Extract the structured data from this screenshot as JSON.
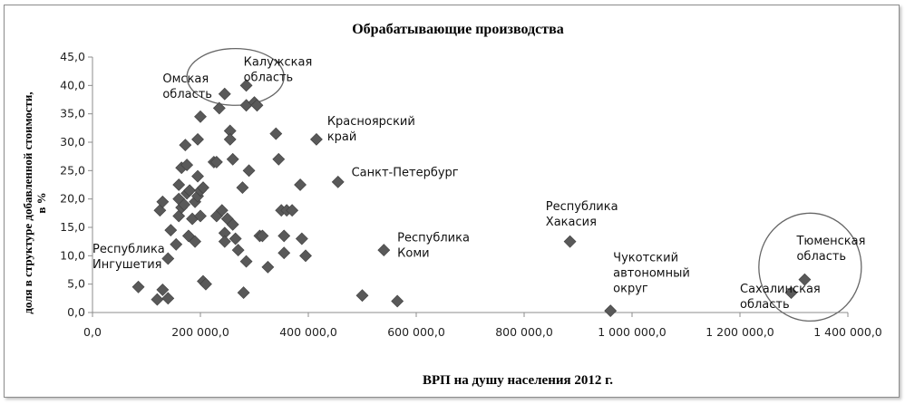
{
  "chart_data": {
    "type": "scatter",
    "title": "Обрабатывающие производства",
    "xlabel": "ВРП на душу населения 2012 г.",
    "ylabel_lines": [
      "доля в структуре добавленной стоимости,",
      "в %"
    ],
    "xlim": [
      0,
      1400000
    ],
    "ylim": [
      0,
      45
    ],
    "x_ticks": [
      0,
      200000,
      400000,
      600000,
      800000,
      1000000,
      1200000,
      1400000
    ],
    "x_tick_labels": [
      "0,0",
      "200 000,0",
      "400 000,0",
      "600 000,0",
      "800 000,0",
      "1 000 000,0",
      "1 200 000,0",
      "1 400 000,0"
    ],
    "y_ticks": [
      0,
      5,
      10,
      15,
      20,
      25,
      30,
      35,
      40,
      45
    ],
    "y_tick_labels": [
      "0,0",
      "5,0",
      "10,0",
      "15,0",
      "20,0",
      "25,0",
      "30,0",
      "35,0",
      "40,0",
      "45,0"
    ],
    "grid": false,
    "marker": "diamond",
    "marker_color": "#595959",
    "points": [
      [
        85000,
        4.5
      ],
      [
        120000,
        2.3
      ],
      [
        130000,
        4.0
      ],
      [
        140000,
        2.5
      ],
      [
        125000,
        18.0
      ],
      [
        130000,
        19.5
      ],
      [
        140000,
        9.5
      ],
      [
        145000,
        14.5
      ],
      [
        155000,
        12.0
      ],
      [
        160000,
        17.0
      ],
      [
        165000,
        18.5
      ],
      [
        160000,
        20.0
      ],
      [
        170000,
        19.0
      ],
      [
        175000,
        21.0
      ],
      [
        178000,
        13.5
      ],
      [
        180000,
        21.5
      ],
      [
        185000,
        16.5
      ],
      [
        190000,
        19.5
      ],
      [
        195000,
        20.5
      ],
      [
        160000,
        22.5
      ],
      [
        165000,
        25.5
      ],
      [
        175000,
        26.0
      ],
      [
        172000,
        29.5
      ],
      [
        195000,
        30.5
      ],
      [
        200000,
        21.5
      ],
      [
        205000,
        22.0
      ],
      [
        195000,
        24.0
      ],
      [
        190000,
        12.5
      ],
      [
        200000,
        17.0
      ],
      [
        200000,
        34.5
      ],
      [
        205000,
        5.5
      ],
      [
        210000,
        5.0
      ],
      [
        225000,
        26.5
      ],
      [
        230000,
        17.0
      ],
      [
        230000,
        26.5
      ],
      [
        240000,
        18.0
      ],
      [
        245000,
        14.0
      ],
      [
        245000,
        12.5
      ],
      [
        250000,
        16.5
      ],
      [
        245000,
        38.5
      ],
      [
        235000,
        36.0
      ],
      [
        255000,
        32.0
      ],
      [
        255000,
        30.5
      ],
      [
        260000,
        27.0
      ],
      [
        260000,
        15.5
      ],
      [
        270000,
        11.0
      ],
      [
        265000,
        13.0
      ],
      [
        278000,
        22.0
      ],
      [
        280000,
        3.5
      ],
      [
        285000,
        9.0
      ],
      [
        285000,
        36.5
      ],
      [
        290000,
        25.0
      ],
      [
        300000,
        37.0
      ],
      [
        285000,
        40.0
      ],
      [
        305000,
        36.5
      ],
      [
        310000,
        13.5
      ],
      [
        315000,
        13.5
      ],
      [
        325000,
        8.0
      ],
      [
        340000,
        31.5
      ],
      [
        345000,
        27.0
      ],
      [
        350000,
        18.0
      ],
      [
        355000,
        13.5
      ],
      [
        355000,
        10.5
      ],
      [
        360000,
        18.0
      ],
      [
        370000,
        18.0
      ],
      [
        385000,
        22.5
      ],
      [
        388000,
        13.0
      ],
      [
        395000,
        10.0
      ],
      [
        415000,
        30.5
      ],
      [
        455000,
        23.0
      ],
      [
        500000,
        3.0
      ],
      [
        540000,
        11.0
      ],
      [
        565000,
        2.0
      ],
      [
        885000,
        12.5
      ],
      [
        960000,
        0.3
      ],
      [
        1295000,
        3.5
      ],
      [
        1320000,
        5.8
      ]
    ],
    "annotations": [
      {
        "lines": [
          "Омская",
          "область"
        ],
        "x": 130000,
        "y": 40.5
      },
      {
        "lines": [
          "Калужская",
          "область"
        ],
        "x": 280000,
        "y": 43.5
      },
      {
        "lines": [
          "Красноярский",
          "край"
        ],
        "x": 435000,
        "y": 33.0
      },
      {
        "lines": [
          "Санкт-Петербург"
        ],
        "x": 480000,
        "y": 24.0
      },
      {
        "lines": [
          "Республика",
          "Коми"
        ],
        "x": 565000,
        "y": 12.5
      },
      {
        "lines": [
          "Республика",
          "Хакасия"
        ],
        "x": 840000,
        "y": 18.0
      },
      {
        "lines": [
          "Чукотский",
          "автономный",
          "округ"
        ],
        "x": 965000,
        "y": 9.0
      },
      {
        "lines": [
          "Республика",
          "Ингушетия"
        ],
        "x": 0,
        "y": 10.5
      },
      {
        "lines": [
          "Тюменская",
          "область"
        ],
        "x": 1305000,
        "y": 12.0
      },
      {
        "lines": [
          "Сахалинская",
          "область"
        ],
        "x": 1200000,
        "y": 3.5
      }
    ],
    "highlight_circles": [
      {
        "cx": 265000,
        "cy": 41.5,
        "rx": 90000,
        "ry": 5.0
      },
      {
        "cx": 1330000,
        "cy": 8.0,
        "rx": 95000,
        "ry": 9.5
      }
    ]
  }
}
